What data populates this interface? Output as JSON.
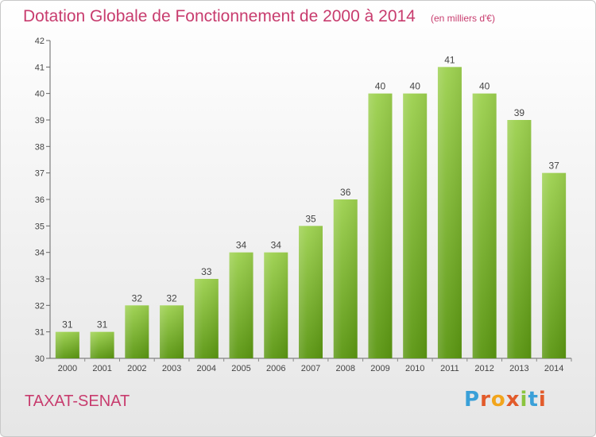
{
  "title": "Dotation Globale de Fonctionnement de 2000 à 2014",
  "subtitle": "(en milliers d'€)",
  "commune": "TAXAT-SENAT",
  "logo_text": "Proxiti",
  "colors": {
    "title": "#c83c6e",
    "bar_top": "#9dd14f",
    "bar_bottom": "#5a9611",
    "axis": "#555555"
  },
  "chart_data": {
    "type": "bar",
    "title": "Dotation Globale de Fonctionnement de 2000 à 2014",
    "subtitle": "(en milliers d'€)",
    "xlabel": "",
    "ylabel": "",
    "categories": [
      "2000",
      "2001",
      "2002",
      "2003",
      "2004",
      "2005",
      "2006",
      "2007",
      "2008",
      "2009",
      "2010",
      "2011",
      "2012",
      "2013",
      "2014"
    ],
    "values": [
      31,
      31,
      32,
      32,
      33,
      34,
      34,
      35,
      36,
      40,
      40,
      41,
      40,
      39,
      37
    ],
    "ylim": [
      30,
      42
    ],
    "yticks": [
      30,
      31,
      32,
      33,
      34,
      35,
      36,
      37,
      38,
      39,
      40,
      41,
      42
    ],
    "grid": false,
    "legend": "none"
  }
}
